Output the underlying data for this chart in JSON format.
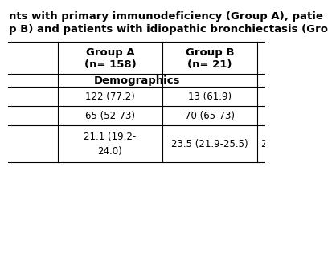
{
  "title_line1": "nts with primary immunodeficiency (Group A), patie",
  "title_line2": "p B) and patients with idiopathic bronchiectasis (Gro",
  "col_headers_a": [
    "Group A",
    "(n= 158)"
  ],
  "col_headers_b": [
    "Group B",
    "(n= 21)"
  ],
  "section_header": "Demographics",
  "row1": [
    "122 (77.2)",
    "13 (61.9)"
  ],
  "row2": [
    "65 (52-73)",
    "70 (65-73)"
  ],
  "row3a": [
    "21.1 (19.2-",
    "23.5 (21.9-25.5)"
  ],
  "row3b": [
    "24.0)",
    "2"
  ],
  "background_color": "#ffffff",
  "grid_color": "#000000",
  "text_color": "#000000",
  "font_size": 8.5,
  "title_font_size": 9.5
}
